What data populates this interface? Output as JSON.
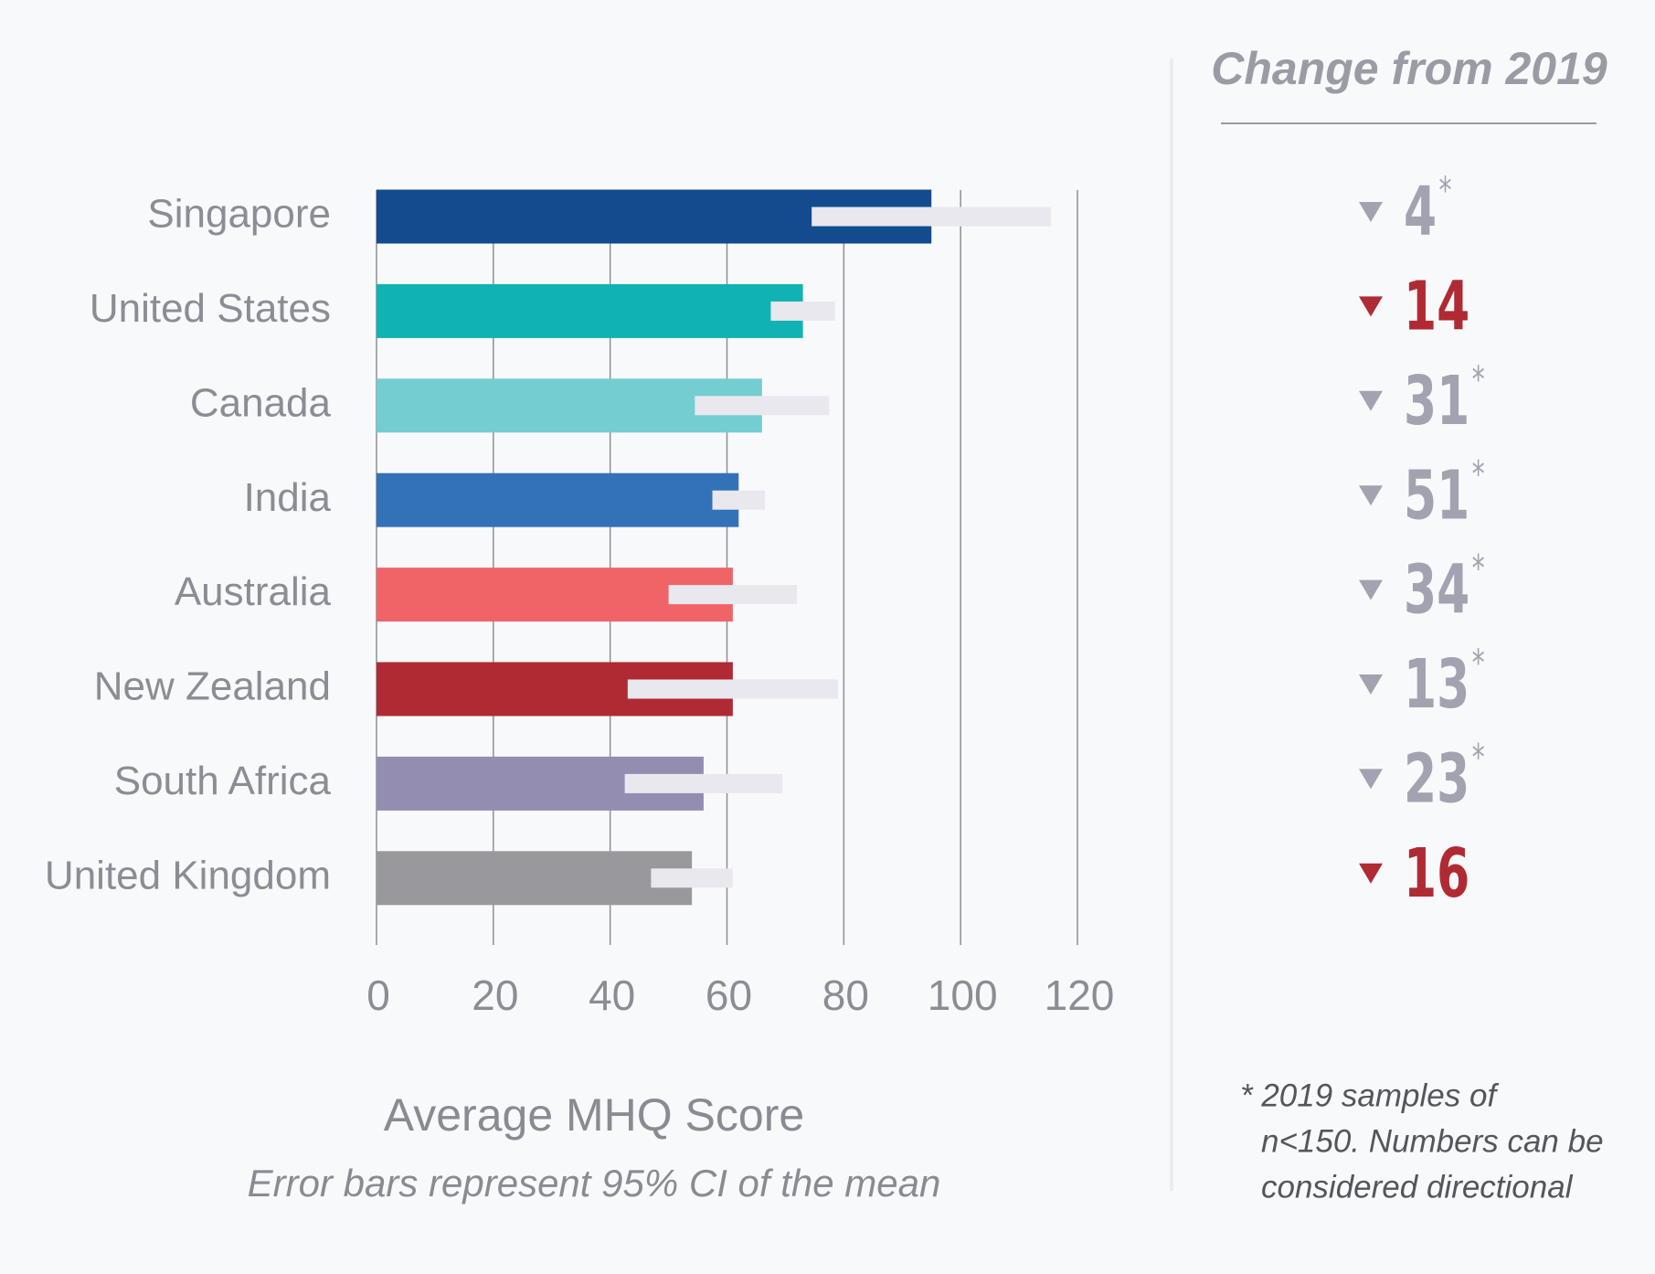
{
  "chart_data": {
    "type": "bar",
    "orientation": "horizontal",
    "x_label": "Average MHQ Score",
    "subtitle": "Error bars represent 95% CI of the mean",
    "categories": [
      "Singapore",
      "United States",
      "Canada",
      "India",
      "Australia",
      "New Zealand",
      "South Africa",
      "United Kingdom"
    ],
    "values": [
      95,
      73,
      66,
      62,
      61,
      61,
      56,
      54
    ],
    "errors": [
      20.5,
      5.5,
      11.5,
      4.5,
      11,
      18,
      13.5,
      7
    ],
    "colors": [
      "#134b8e",
      "#10b2b3",
      "#74cdd0",
      "#3372b8",
      "#f06467",
      "#b02a34",
      "#948db2",
      "#99989d"
    ],
    "error_color": "#e8e8ee",
    "xlim": [
      0,
      120
    ],
    "xticks": [
      0,
      20,
      40,
      60,
      80,
      100,
      120
    ],
    "grid": true,
    "change_panel": {
      "title": "Change from 2019",
      "values": [
        4,
        14,
        31,
        51,
        34,
        13,
        23,
        16
      ],
      "flags": [
        "*",
        null,
        "*",
        "*",
        "*",
        "*",
        "*",
        null
      ],
      "colors": [
        "#a2a3b0",
        "#b02a34",
        "#a2a3b0",
        "#a2a3b0",
        "#a2a3b0",
        "#a2a3b0",
        "#a2a3b0",
        "#b02a34"
      ],
      "footnote": [
        "* 2019 samples of",
        "n<150. Numbers can be",
        "considered directional"
      ]
    }
  }
}
